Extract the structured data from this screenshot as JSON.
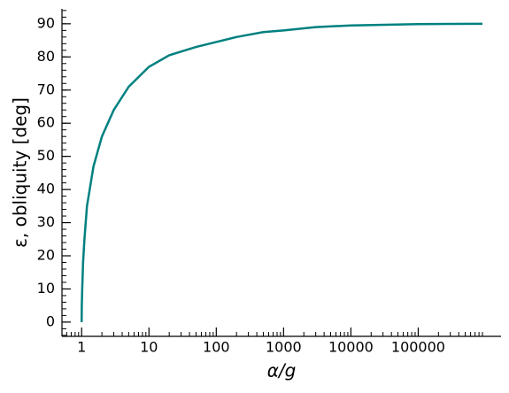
{
  "chart_data": {
    "type": "line",
    "xlabel": "α/g",
    "ylabel": "ε, obliquity [deg]",
    "xscale": "log",
    "xlim": [
      0.51,
      1700000
    ],
    "ylim": [
      -4.3,
      94.5
    ],
    "xticks": [
      1,
      10,
      100,
      1000,
      10000,
      100000
    ],
    "yticks": [
      0,
      10,
      20,
      30,
      40,
      50,
      60,
      70,
      80,
      90
    ],
    "grid": false,
    "series": [
      {
        "color": "#008080",
        "x": [
          1,
          1.005,
          1.02,
          1.05,
          1.1,
          1.2,
          1.5,
          2,
          3,
          5,
          10,
          20,
          50,
          100,
          200,
          500,
          1000,
          3000,
          10000,
          100000,
          900000
        ],
        "values": [
          0,
          5,
          10,
          18,
          25,
          35,
          47,
          56,
          64,
          71,
          77,
          80.5,
          83,
          84.5,
          86,
          87.5,
          88,
          89,
          89.5,
          89.9,
          90
        ]
      }
    ]
  }
}
